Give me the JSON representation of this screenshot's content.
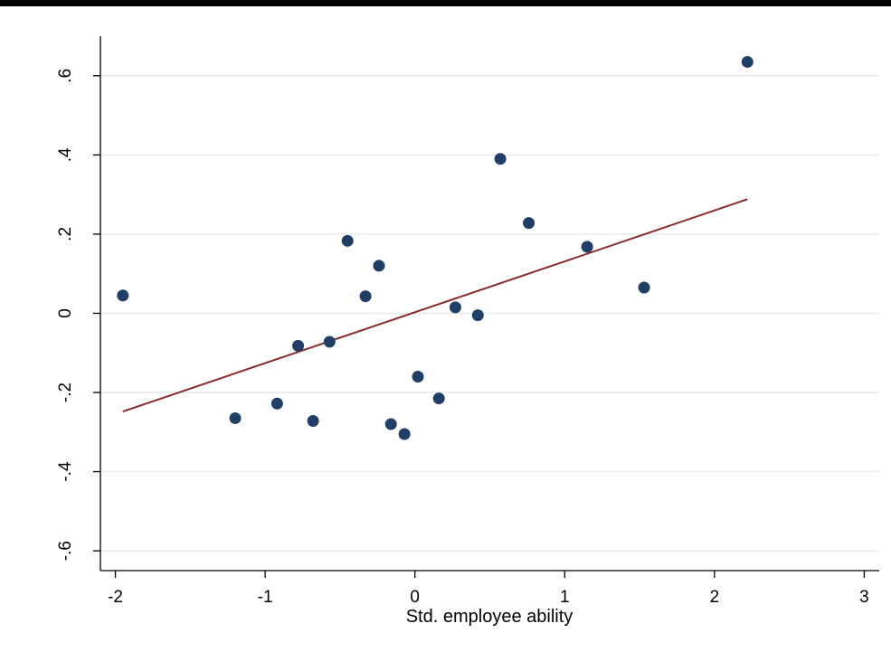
{
  "chart_data": {
    "type": "scatter",
    "title": "",
    "xlabel": "Std. employee ability",
    "ylabel": "",
    "xlim": [
      -2.1,
      3.1
    ],
    "ylim": [
      -0.65,
      0.7
    ],
    "xticks": [
      -2,
      -1,
      0,
      1,
      2,
      3
    ],
    "xtick_labels": [
      "-2",
      "-1",
      "0",
      "1",
      "2",
      "3"
    ],
    "yticks": [
      -0.6,
      -0.4,
      -0.2,
      0,
      0.2,
      0.4,
      0.6
    ],
    "ytick_labels": [
      "-.6",
      "-.4",
      "-.2",
      "0",
      ".2",
      ".4",
      ".6"
    ],
    "grid": true,
    "legend": "none",
    "colors": {
      "points": "#1f3f66",
      "fit_line": "#8b2a2a",
      "grid": "#e3ecec",
      "axis": "#000000",
      "background": "#ffffff"
    },
    "series": [
      {
        "type": "scatter",
        "points": [
          {
            "x": -1.95,
            "y": 0.045
          },
          {
            "x": -1.2,
            "y": -0.265
          },
          {
            "x": -0.92,
            "y": -0.228
          },
          {
            "x": -0.78,
            "y": -0.082
          },
          {
            "x": -0.68,
            "y": -0.272
          },
          {
            "x": -0.57,
            "y": -0.072
          },
          {
            "x": -0.45,
            "y": 0.183
          },
          {
            "x": -0.33,
            "y": 0.043
          },
          {
            "x": -0.24,
            "y": 0.12
          },
          {
            "x": -0.16,
            "y": -0.28
          },
          {
            "x": -0.07,
            "y": -0.305
          },
          {
            "x": 0.02,
            "y": -0.16
          },
          {
            "x": 0.16,
            "y": -0.215
          },
          {
            "x": 0.27,
            "y": 0.015
          },
          {
            "x": 0.42,
            "y": -0.005
          },
          {
            "x": 0.57,
            "y": 0.39
          },
          {
            "x": 0.76,
            "y": 0.228
          },
          {
            "x": 1.15,
            "y": 0.168
          },
          {
            "x": 1.53,
            "y": 0.065
          },
          {
            "x": 2.22,
            "y": 0.635
          }
        ]
      },
      {
        "type": "line",
        "x": [
          -1.95,
          2.22
        ],
        "y": [
          -0.248,
          0.288
        ]
      }
    ]
  }
}
